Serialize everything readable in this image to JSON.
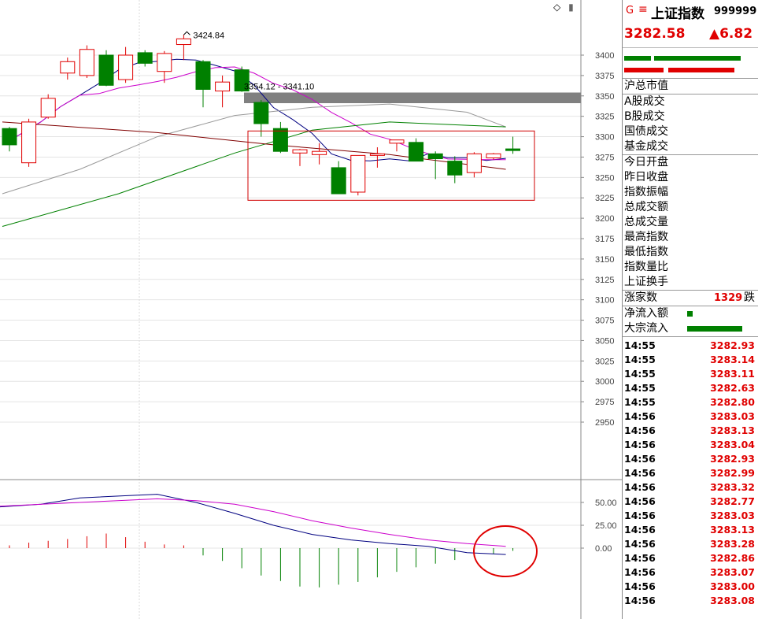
{
  "header": {
    "g_icon": "G",
    "menu_icon": "≡",
    "index_name": "上证指数",
    "index_code": "999999",
    "price": "3282.58",
    "change": "▲6.82"
  },
  "top_icons": {
    "diamond": "◇",
    "scroll": "▮"
  },
  "panel": {
    "market_value_label": "沪总市值",
    "volume_labels": [
      "A股成交",
      "B股成交",
      "国债成交",
      "基金成交"
    ],
    "stats_labels": [
      "今日开盘",
      "昨日收盘",
      "指数振幅",
      "总成交额",
      "总成交量",
      "最高指数",
      "最低指数",
      "指数量比",
      "上证换手"
    ],
    "rise_label": "涨家数",
    "rise_count": "1329",
    "fall_label_partial": "跌",
    "flow_labels": [
      "净流入额",
      "大宗流入"
    ]
  },
  "ticks": [
    {
      "time": "14:55",
      "price": "3282.93"
    },
    {
      "time": "14:55",
      "price": "3283.14"
    },
    {
      "time": "14:55",
      "price": "3283.11"
    },
    {
      "time": "14:55",
      "price": "3282.63"
    },
    {
      "time": "14:55",
      "price": "3282.80"
    },
    {
      "time": "14:56",
      "price": "3283.03"
    },
    {
      "time": "14:56",
      "price": "3283.13"
    },
    {
      "time": "14:56",
      "price": "3283.04"
    },
    {
      "time": "14:56",
      "price": "3282.93"
    },
    {
      "time": "14:56",
      "price": "3282.99"
    },
    {
      "time": "14:56",
      "price": "3283.32"
    },
    {
      "time": "14:56",
      "price": "3282.77"
    },
    {
      "time": "14:56",
      "price": "3283.03"
    },
    {
      "time": "14:56",
      "price": "3283.13"
    },
    {
      "time": "14:56",
      "price": "3283.28"
    },
    {
      "time": "14:56",
      "price": "3282.86"
    },
    {
      "time": "14:56",
      "price": "3283.07"
    },
    {
      "time": "14:56",
      "price": "3283.00"
    },
    {
      "time": "14:56",
      "price": "3283.08"
    }
  ],
  "chart": {
    "price_ticks": [
      "3400",
      "3375",
      "3350",
      "3325",
      "3300",
      "3275",
      "3250",
      "3225",
      "3200",
      "3175",
      "3150",
      "3125",
      "3100",
      "3075",
      "3050",
      "3025",
      "3000",
      "2975",
      "2950"
    ],
    "macd_ticks": [
      "50.00",
      "25.00",
      "0.00"
    ],
    "high_label": "3424.84",
    "gap_label": "3354.12 - 3341.10",
    "colors": {
      "up": "#e00000",
      "down": "#008000",
      "ma5": "#000080",
      "ma10": "#cc00cc",
      "ma20": "#999999",
      "ma60": "#008000",
      "ma120": "#800000",
      "gap": "#808080"
    },
    "candles": [
      {
        "o": 3310,
        "h": 3312,
        "l": 3282,
        "c": 3290
      },
      {
        "o": 3268,
        "h": 3322,
        "l": 3263,
        "c": 3318
      },
      {
        "o": 3324,
        "h": 3352,
        "l": 3322,
        "c": 3347
      },
      {
        "o": 3378,
        "h": 3397,
        "l": 3370,
        "c": 3392
      },
      {
        "o": 3375,
        "h": 3412,
        "l": 3372,
        "c": 3407
      },
      {
        "o": 3400,
        "h": 3406,
        "l": 3362,
        "c": 3363
      },
      {
        "o": 3370,
        "h": 3410,
        "l": 3366,
        "c": 3400
      },
      {
        "o": 3403,
        "h": 3406,
        "l": 3386,
        "c": 3390
      },
      {
        "o": 3380,
        "h": 3405,
        "l": 3366,
        "c": 3402
      },
      {
        "o": 3413,
        "h": 3425,
        "l": 3394,
        "c": 3420
      },
      {
        "o": 3392,
        "h": 3394,
        "l": 3336,
        "c": 3358
      },
      {
        "o": 3356,
        "h": 3375,
        "l": 3336,
        "c": 3367
      },
      {
        "o": 3382,
        "h": 3386,
        "l": 3355,
        "c": 3356
      },
      {
        "o": 3342,
        "h": 3345,
        "l": 3300,
        "c": 3316
      },
      {
        "o": 3310,
        "h": 3318,
        "l": 3280,
        "c": 3282
      },
      {
        "o": 3280,
        "h": 3285,
        "l": 3264,
        "c": 3284
      },
      {
        "o": 3278,
        "h": 3292,
        "l": 3266,
        "c": 3282
      },
      {
        "o": 3262,
        "h": 3270,
        "l": 3230,
        "c": 3230
      },
      {
        "o": 3232,
        "h": 3276,
        "l": 3228,
        "c": 3277
      },
      {
        "o": 3277,
        "h": 3287,
        "l": 3262,
        "c": 3279
      },
      {
        "o": 3292,
        "h": 3296,
        "l": 3282,
        "c": 3296
      },
      {
        "o": 3293,
        "h": 3298,
        "l": 3270,
        "c": 3270
      },
      {
        "o": 3279,
        "h": 3282,
        "l": 3248,
        "c": 3273
      },
      {
        "o": 3270,
        "h": 3276,
        "l": 3243,
        "c": 3253
      },
      {
        "o": 3256,
        "h": 3281,
        "l": 3250,
        "c": 3279
      },
      {
        "o": 3274,
        "h": 3280,
        "l": 3272,
        "c": 3279
      },
      {
        "o": 3285,
        "h": 3300,
        "l": 3279,
        "c": 3283
      }
    ],
    "macd_bars": [
      3,
      6,
      8,
      10,
      13,
      16,
      12,
      7,
      4,
      3,
      -8,
      -14,
      -22,
      -30,
      -36,
      -42,
      -43,
      -40,
      -37,
      -32,
      -26,
      -21,
      -17,
      -13,
      -10,
      -6,
      -3
    ]
  },
  "side_bars": {
    "red_share": "",
    "green_share": ""
  }
}
